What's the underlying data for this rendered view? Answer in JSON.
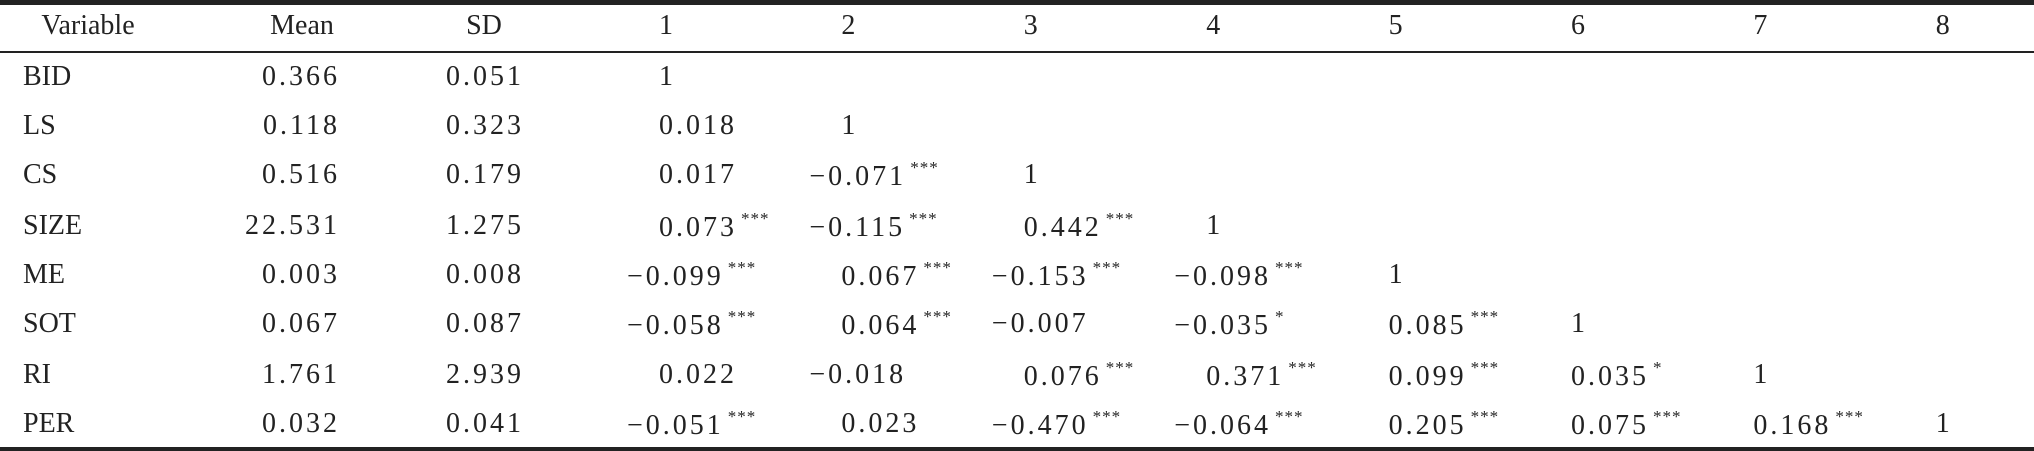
{
  "table": {
    "header": [
      "Variable",
      "Mean",
      "SD",
      "1",
      "2",
      "3",
      "4",
      "5",
      "6",
      "7",
      "8"
    ],
    "rows": [
      {
        "label": "BID",
        "cells": [
          {
            "text": "0.366"
          },
          {
            "text": "0.051"
          },
          {
            "text": "1"
          }
        ]
      },
      {
        "label": "LS",
        "cells": [
          {
            "text": "0.118"
          },
          {
            "text": "0.323"
          },
          {
            "text": "0.018"
          },
          {
            "text": "1"
          }
        ]
      },
      {
        "label": "CS",
        "cells": [
          {
            "text": "0.516"
          },
          {
            "text": "0.179"
          },
          {
            "text": "0.017"
          },
          {
            "text": "−0.071",
            "sig": "***"
          },
          {
            "text": "1"
          }
        ]
      },
      {
        "label": "SIZE",
        "cells": [
          {
            "text": "22.531"
          },
          {
            "text": "1.275"
          },
          {
            "text": "0.073",
            "sig": "***"
          },
          {
            "text": "−0.115",
            "sig": "***"
          },
          {
            "text": "0.442",
            "sig": "***"
          },
          {
            "text": "1"
          }
        ]
      },
      {
        "label": "ME",
        "cells": [
          {
            "text": "0.003"
          },
          {
            "text": "0.008"
          },
          {
            "text": "−0.099",
            "sig": "***"
          },
          {
            "text": "0.067",
            "sig": "***"
          },
          {
            "text": "−0.153",
            "sig": "***"
          },
          {
            "text": "−0.098",
            "sig": "***"
          },
          {
            "text": "1"
          }
        ]
      },
      {
        "label": "SOT",
        "cells": [
          {
            "text": "0.067"
          },
          {
            "text": "0.087"
          },
          {
            "text": "−0.058",
            "sig": "***"
          },
          {
            "text": "0.064",
            "sig": "***"
          },
          {
            "text": "−0.007"
          },
          {
            "text": "−0.035",
            "sig": "*"
          },
          {
            "text": "0.085",
            "sig": "***"
          },
          {
            "text": "1"
          }
        ]
      },
      {
        "label": "RI",
        "cells": [
          {
            "text": "1.761"
          },
          {
            "text": "2.939"
          },
          {
            "text": "0.022"
          },
          {
            "text": "−0.018"
          },
          {
            "text": "0.076",
            "sig": "***"
          },
          {
            "text": "0.371",
            "sig": "***"
          },
          {
            "text": "0.099",
            "sig": "***"
          },
          {
            "text": "0.035",
            "sig": "*"
          },
          {
            "text": "1"
          }
        ]
      },
      {
        "label": "PER",
        "cells": [
          {
            "text": "0.032"
          },
          {
            "text": "0.041"
          },
          {
            "text": "−0.051",
            "sig": "***"
          },
          {
            "text": "0.023"
          },
          {
            "text": "−0.470",
            "sig": "***"
          },
          {
            "text": "−0.064",
            "sig": "***"
          },
          {
            "text": "0.205",
            "sig": "***"
          },
          {
            "text": "0.075",
            "sig": "***"
          },
          {
            "text": "0.168",
            "sig": "***"
          },
          {
            "text": "1"
          }
        ]
      }
    ]
  }
}
